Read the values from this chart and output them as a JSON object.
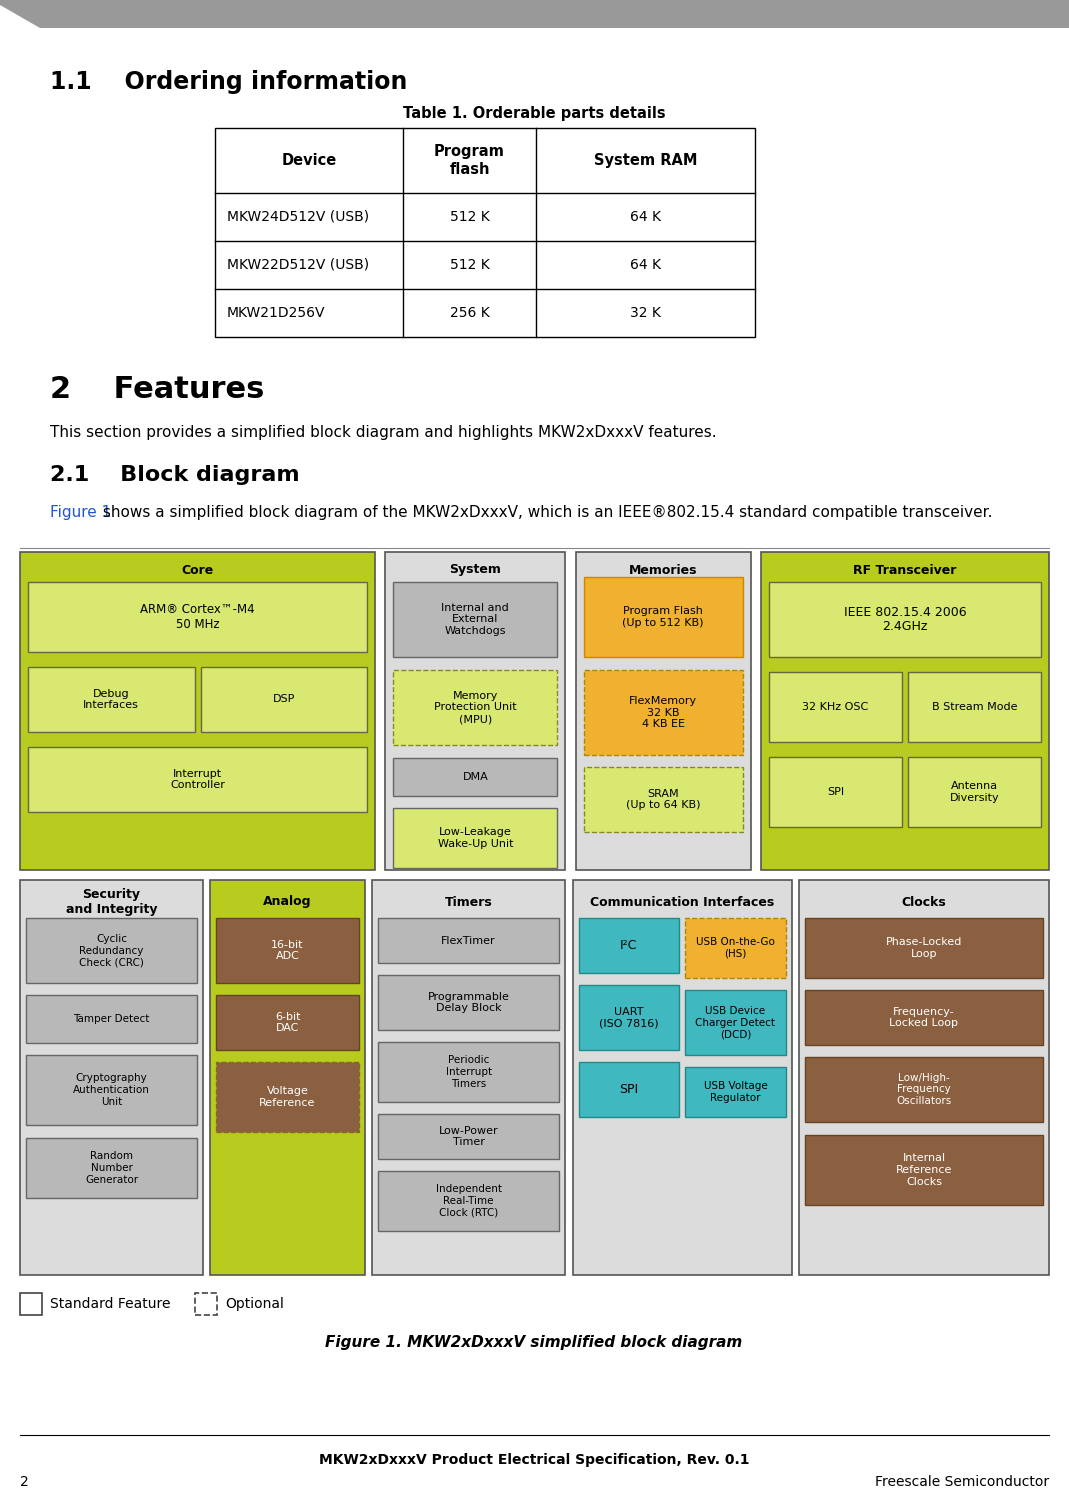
{
  "page_title": "MKW2xDxxxV Product Electrical Specification, Rev. 0.1",
  "page_number": "2",
  "page_footer_right": "Freescale Semiconductor",
  "section_1_1": "1.1    Ordering information",
  "table_title": "Table 1. Orderable parts details",
  "table_headers": [
    "Device",
    "Program\nflash",
    "System RAM"
  ],
  "table_rows": [
    [
      "MKW24D512V (USB)",
      "512 K",
      "64 K"
    ],
    [
      "MKW22D512V (USB)",
      "512 K",
      "64 K"
    ],
    [
      "MKW21D256V",
      "256 K",
      "32 K"
    ]
  ],
  "section_2": "2    Features",
  "section_2_body": "This section provides a simplified block diagram and highlights MKW2xDxxxV features.",
  "section_2_1": "2.1    Block diagram",
  "section_2_1_body_blue": "Figure 1",
  "section_2_1_body_black": " shows a simplified block diagram of the MKW2xDxxxV, which is an IEEE®802.15.4 standard compatible transceiver.",
  "figure_caption": "Figure 1. MKW2xDxxxV simplified block diagram",
  "bg_color": "#ffffff",
  "text_color": "#000000",
  "blue_link_color": "#2255cc",
  "header_gray": "#999999",
  "col_green": "#b8cc00",
  "col_green_inner": "#d4e055",
  "col_gray_bg": "#e0e0e0",
  "col_gray_inner": "#b0b0b0",
  "col_orange": "#e8a020",
  "col_brown": "#8b6040",
  "col_cyan": "#40c0c0",
  "col_yellow_inner": "#f0d060"
}
